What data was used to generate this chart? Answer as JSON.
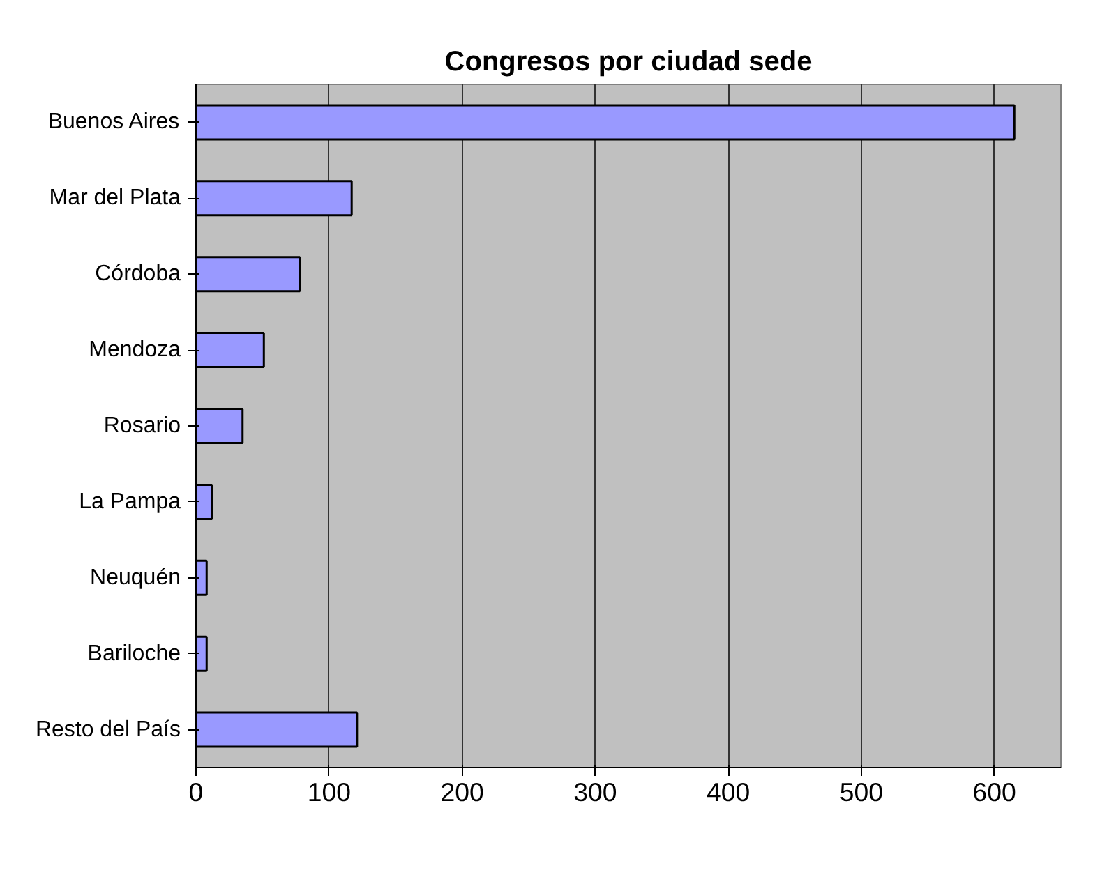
{
  "chart_data": {
    "type": "bar",
    "orientation": "horizontal",
    "title": "Congresos por ciudad sede",
    "categories": [
      "Buenos Aires",
      "Mar del Plata",
      "Córdoba",
      "Mendoza",
      "Rosario",
      "La Pampa",
      "Neuquén",
      "Bariloche",
      "Resto del País"
    ],
    "values": [
      615,
      117,
      78,
      51,
      35,
      12,
      8,
      8,
      121
    ],
    "color": "#9999ff",
    "xlim": [
      0,
      650
    ],
    "xticks": [
      0,
      100,
      200,
      300,
      400,
      500,
      600
    ],
    "grid": "x"
  }
}
